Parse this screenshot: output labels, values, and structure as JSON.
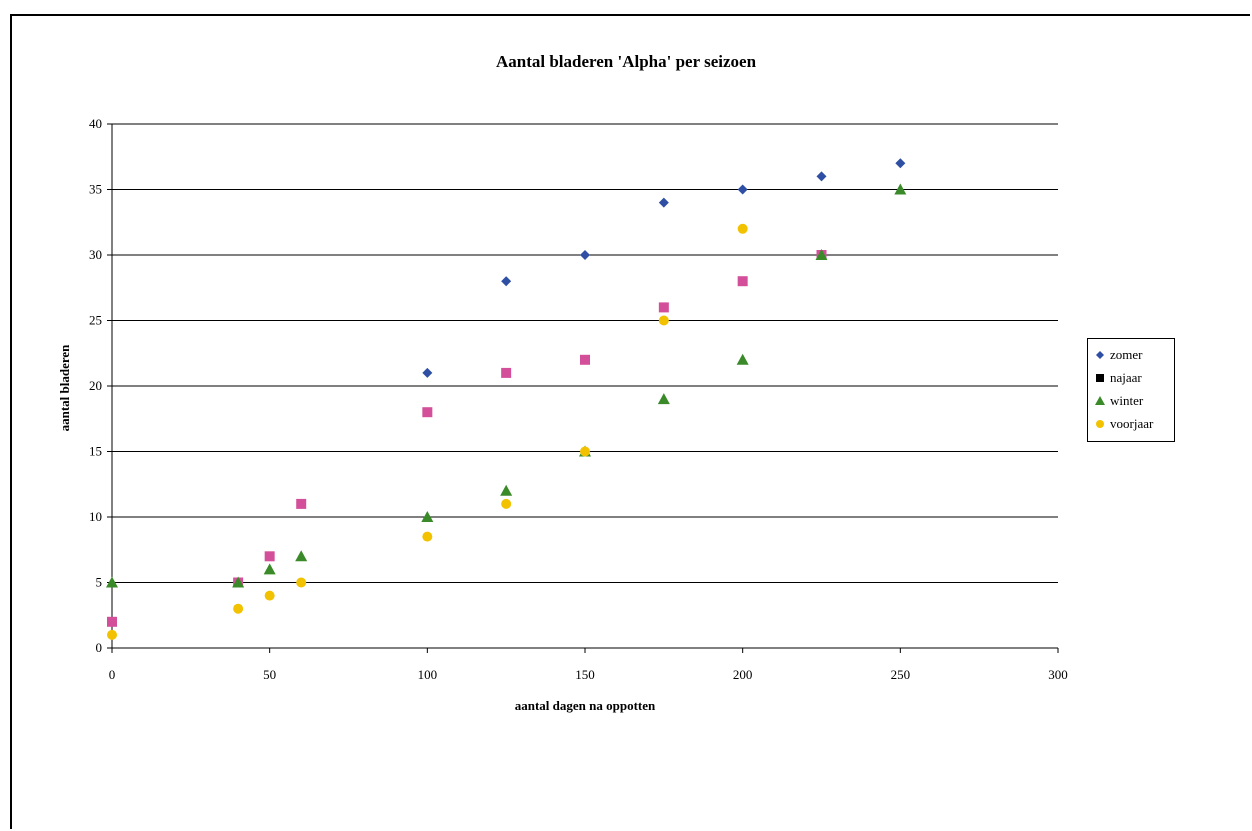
{
  "chart_data": {
    "type": "scatter",
    "title": "Aantal bladeren 'Alpha' per seizoen",
    "xlabel": "aantal dagen na oppotten",
    "ylabel": "aantal bladeren",
    "xlim": [
      0,
      300
    ],
    "ylim": [
      0,
      40
    ],
    "xticks": [
      0,
      50,
      100,
      150,
      200,
      250,
      300
    ],
    "yticks": [
      0,
      5,
      10,
      15,
      20,
      25,
      30,
      35,
      40
    ],
    "grid": "horizontal",
    "legend_position": "right",
    "series": [
      {
        "name": "zomer",
        "marker": "diamond",
        "color": "#2e4fa3",
        "points": [
          [
            100,
            21
          ],
          [
            125,
            28
          ],
          [
            150,
            30
          ],
          [
            175,
            34
          ],
          [
            200,
            35
          ],
          [
            225,
            36
          ],
          [
            250,
            37
          ]
        ]
      },
      {
        "name": "najaar",
        "marker": "square",
        "color": "#d44f9a",
        "legend_color": "#000000",
        "points": [
          [
            0,
            2
          ],
          [
            40,
            5
          ],
          [
            50,
            7
          ],
          [
            60,
            11
          ],
          [
            100,
            18
          ],
          [
            125,
            21
          ],
          [
            150,
            22
          ],
          [
            175,
            26
          ],
          [
            200,
            28
          ],
          [
            225,
            30
          ]
        ]
      },
      {
        "name": "winter",
        "marker": "triangle",
        "color": "#3a8a2a",
        "points": [
          [
            0,
            5
          ],
          [
            40,
            5
          ],
          [
            50,
            6
          ],
          [
            60,
            7
          ],
          [
            100,
            10
          ],
          [
            125,
            12
          ],
          [
            150,
            15
          ],
          [
            175,
            19
          ],
          [
            200,
            22
          ],
          [
            225,
            30
          ],
          [
            250,
            35
          ]
        ]
      },
      {
        "name": "voorjaar",
        "marker": "circle",
        "color": "#f2c200",
        "points": [
          [
            0,
            1
          ],
          [
            40,
            3
          ],
          [
            50,
            4
          ],
          [
            60,
            5
          ],
          [
            100,
            8.5
          ],
          [
            125,
            11
          ],
          [
            150,
            15
          ],
          [
            175,
            25
          ],
          [
            200,
            32
          ]
        ]
      }
    ]
  }
}
